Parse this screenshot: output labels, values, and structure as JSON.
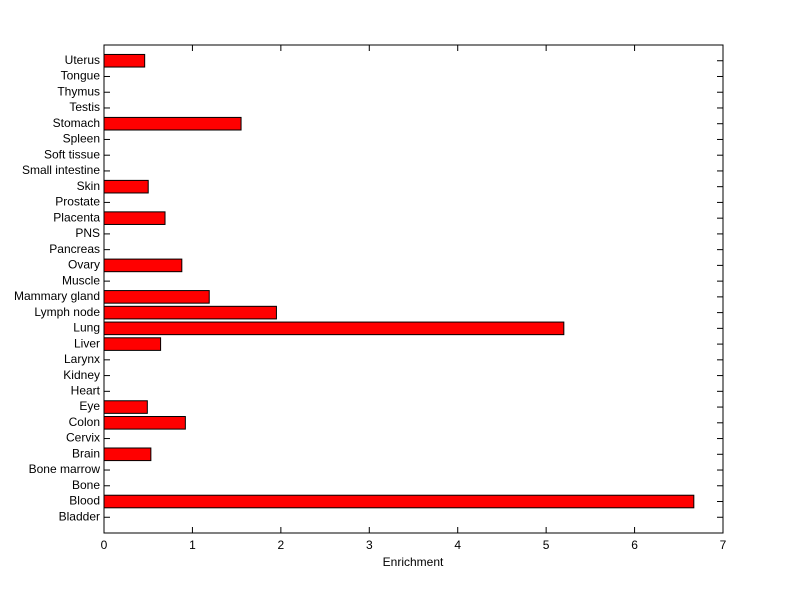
{
  "chart_data": {
    "type": "bar",
    "orientation": "horizontal",
    "xlabel": "Enrichment",
    "categories": [
      "Bladder",
      "Blood",
      "Bone",
      "Bone marrow",
      "Brain",
      "Cervix",
      "Colon",
      "Eye",
      "Heart",
      "Kidney",
      "Larynx",
      "Liver",
      "Lung",
      "Lymph node",
      "Mammary gland",
      "Muscle",
      "Ovary",
      "Pancreas",
      "PNS",
      "Placenta",
      "Prostate",
      "Skin",
      "Small intestine",
      "Soft tissue",
      "Spleen",
      "Stomach",
      "Testis",
      "Thymus",
      "Tongue",
      "Uterus"
    ],
    "values": [
      0,
      6.67,
      0,
      0,
      0.53,
      0,
      0.92,
      0.49,
      0,
      0,
      0,
      0.64,
      5.2,
      1.95,
      1.19,
      0,
      0.88,
      0,
      0,
      0.69,
      0,
      0.5,
      0,
      0,
      0,
      1.55,
      0,
      0,
      0,
      0.46
    ],
    "color": "#ff0000",
    "xlim": [
      0,
      7
    ],
    "xticks": [
      0,
      1,
      2,
      3,
      4,
      5,
      6,
      7
    ]
  }
}
